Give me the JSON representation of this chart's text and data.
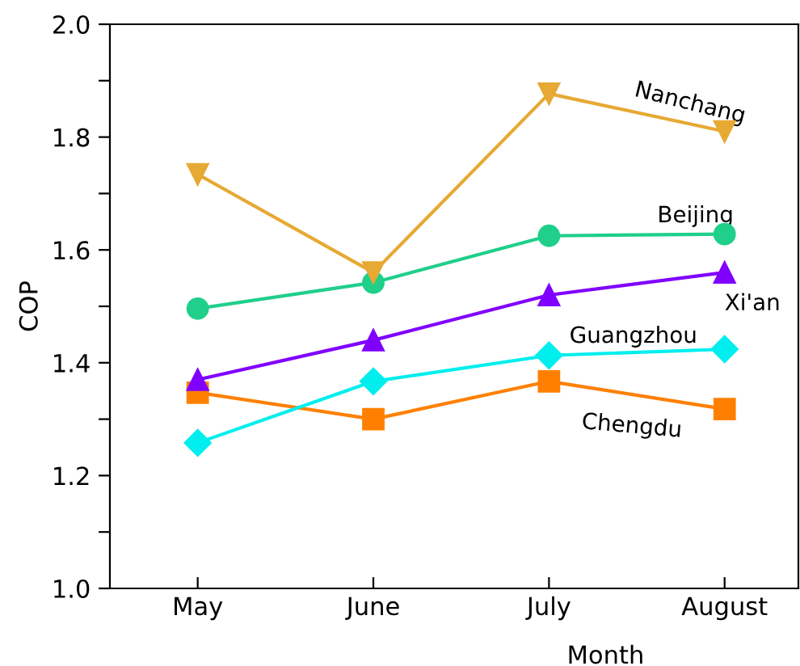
{
  "chart_data": {
    "type": "line",
    "xlabel": "Month",
    "ylabel": "COP",
    "categories": [
      "May",
      "June",
      "July",
      "August"
    ],
    "ylim": [
      1.0,
      2.0
    ],
    "yticks": [
      {
        "value": 1.0,
        "label": "1.0"
      },
      {
        "value": 1.1,
        "label": null
      },
      1.2,
      {
        "value": 1.3,
        "label": null
      },
      1.4,
      {
        "value": 1.5,
        "label": null
      },
      1.6,
      {
        "value": 1.7,
        "label": null
      },
      1.8,
      {
        "value": 1.9,
        "label": null
      },
      {
        "value": 2.0,
        "label": "2.0"
      }
    ],
    "grid": false,
    "legend": false,
    "series": [
      {
        "name": "Nanchang",
        "color": "#e6a933",
        "marker": "triangle_down",
        "values": [
          1.734,
          1.56,
          1.877,
          1.81
        ]
      },
      {
        "name": "Beijing",
        "color": "#1fcf8a",
        "marker": "circle",
        "values": [
          1.496,
          1.542,
          1.625,
          1.628
        ]
      },
      {
        "name": "Xi'an",
        "color": "#8000ff",
        "marker": "triangle",
        "values": [
          1.37,
          1.44,
          1.52,
          1.56
        ]
      },
      {
        "name": "Guangzhou",
        "color": "#00eeee",
        "marker": "diamond",
        "values": [
          1.258,
          1.367,
          1.413,
          1.424
        ]
      },
      {
        "name": "Chengdu",
        "color": "#ff8000",
        "marker": "square",
        "values": [
          1.347,
          1.3,
          1.367,
          1.318
        ]
      }
    ]
  }
}
